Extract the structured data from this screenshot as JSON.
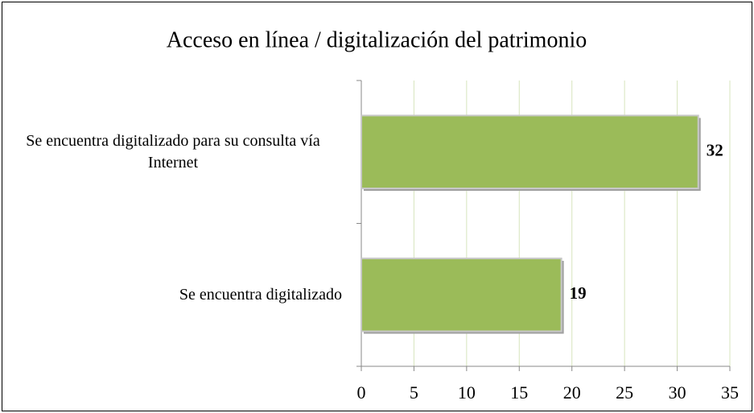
{
  "chart_data": {
    "type": "hbar",
    "title": "Acceso en línea / digitalización del patrimonio",
    "categories": [
      "Se encuentra digitalizado para su consulta vía Internet",
      "Se encuentra digitalizado"
    ],
    "values": [
      32,
      19
    ],
    "color": "#9bbb59",
    "xlim": [
      0,
      35
    ],
    "xticks": [
      0,
      5,
      10,
      15,
      20,
      25,
      30,
      35
    ],
    "grid": true
  }
}
